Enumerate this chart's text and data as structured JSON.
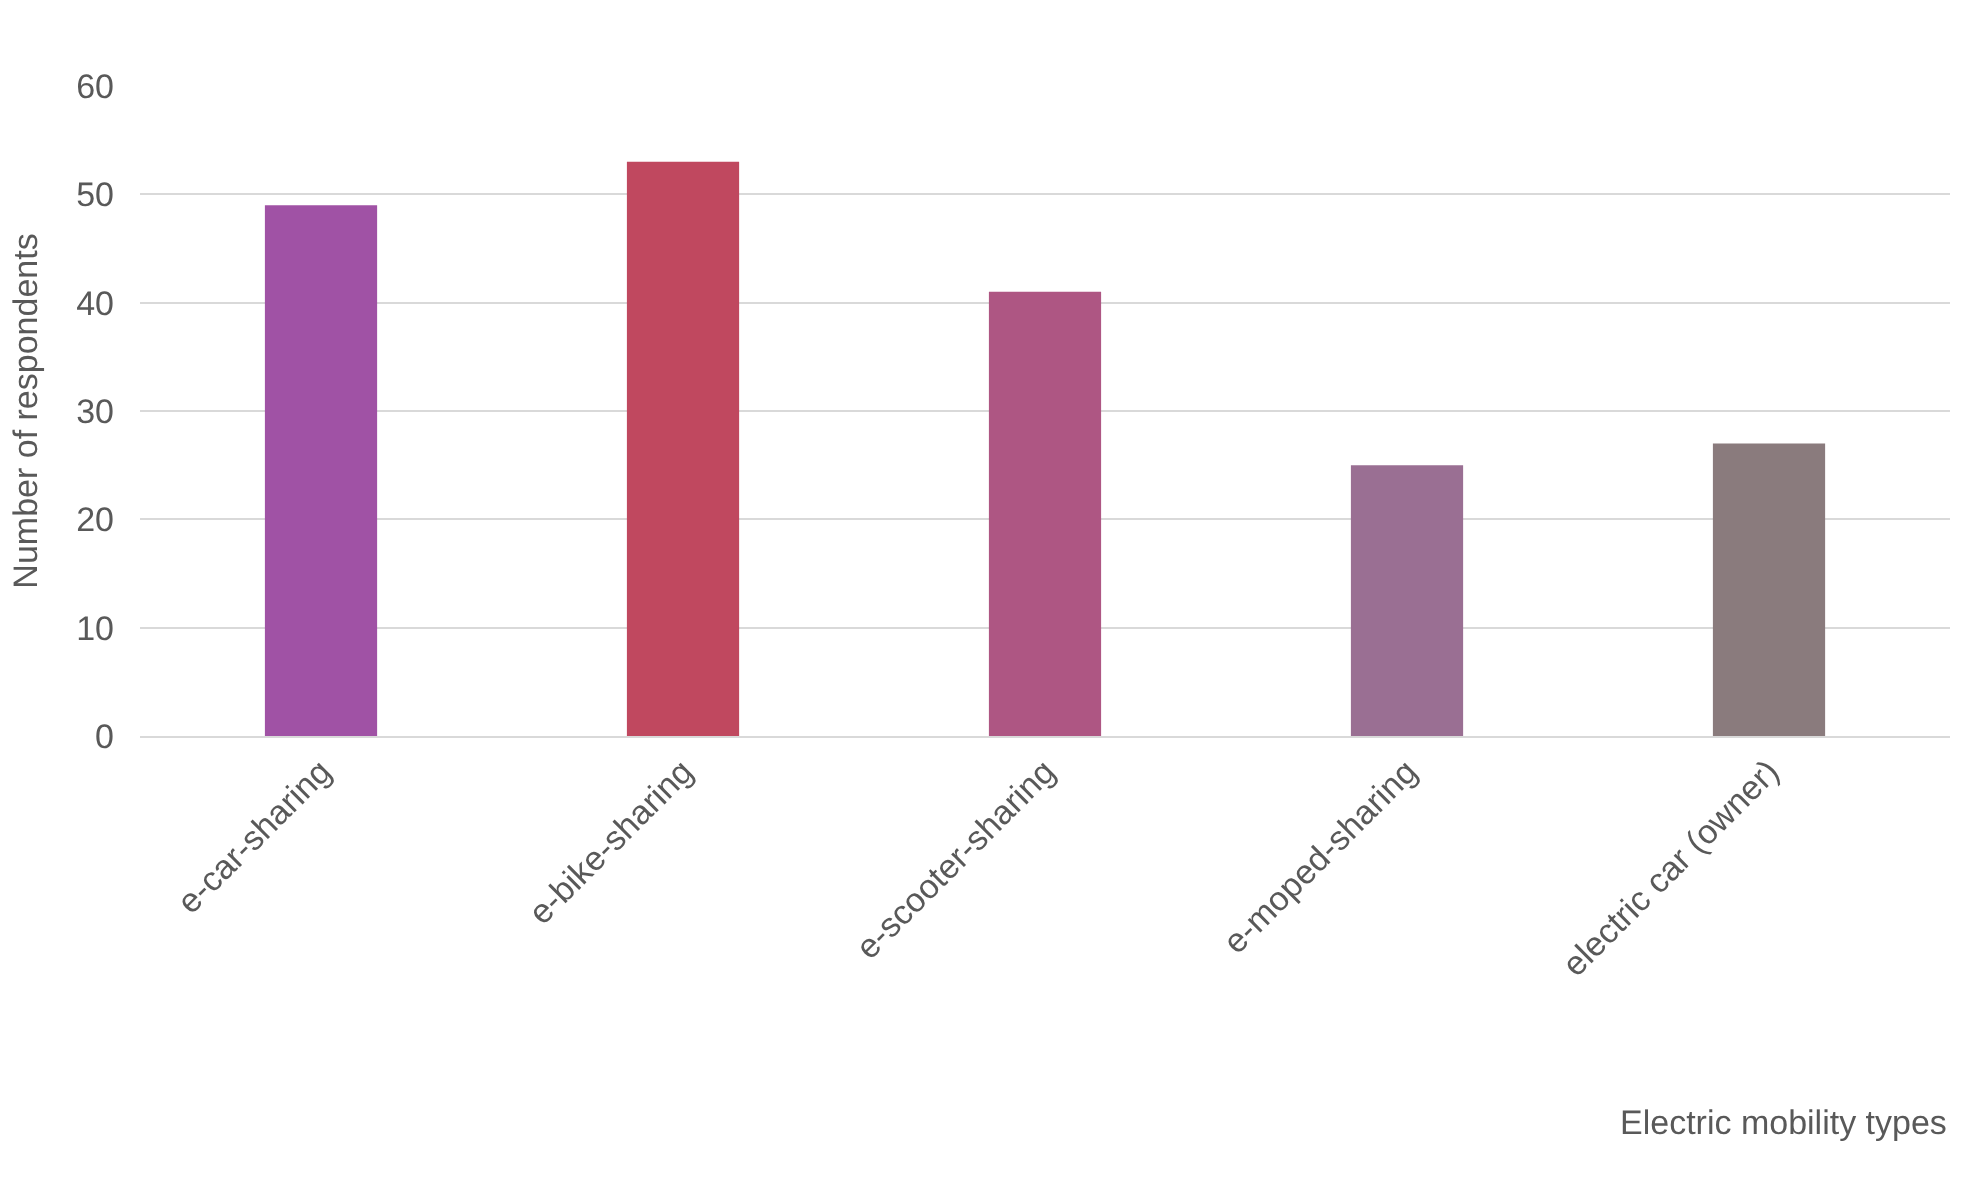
{
  "chart_data": {
    "type": "bar",
    "annotations": [
      "Electric mobility types"
    ],
    "ylabel": "Number of respondents",
    "categories": [
      "e-car-sharing",
      "e-bike-sharing",
      "e-scooter-sharing",
      "e-moped-sharing",
      "electric car (owner)"
    ],
    "values": [
      49,
      53,
      41,
      25,
      27
    ],
    "colors": [
      "#a052a5",
      "#c0485f",
      "#ae5683",
      "#9a6f93",
      "#8a7b7d"
    ],
    "ylim": [
      0,
      60
    ],
    "yticks": [
      0,
      10,
      20,
      30,
      40,
      50,
      60
    ],
    "grid": "y"
  }
}
